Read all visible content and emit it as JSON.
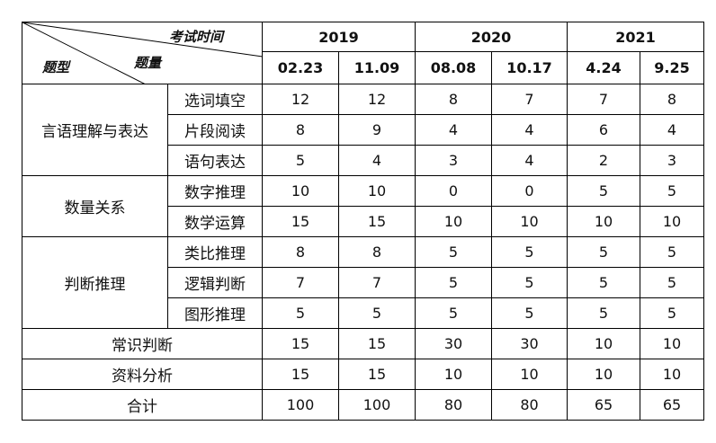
{
  "corner": {
    "time_label": "考试时间",
    "type_label": "题型",
    "qty_label": "题量"
  },
  "years": [
    {
      "label": "2019"
    },
    {
      "label": "2020"
    },
    {
      "label": "2021"
    }
  ],
  "dates": [
    "02.23",
    "11.09",
    "08.08",
    "10.17",
    "4.24",
    "9.25"
  ],
  "groups": [
    {
      "category": "言语理解与表达",
      "rows": [
        {
          "name": "选词填空",
          "values": [
            "12",
            "12",
            "8",
            "7",
            "7",
            "8"
          ]
        },
        {
          "name": "片段阅读",
          "values": [
            "8",
            "9",
            "4",
            "4",
            "6",
            "4"
          ]
        },
        {
          "name": "语句表达",
          "values": [
            "5",
            "4",
            "3",
            "4",
            "2",
            "3"
          ]
        }
      ]
    },
    {
      "category": "数量关系",
      "rows": [
        {
          "name": "数字推理",
          "values": [
            "10",
            "10",
            "0",
            "0",
            "5",
            "5"
          ]
        },
        {
          "name": "数学运算",
          "values": [
            "15",
            "15",
            "10",
            "10",
            "10",
            "10"
          ]
        }
      ]
    },
    {
      "category": "判断推理",
      "rows": [
        {
          "name": "类比推理",
          "values": [
            "8",
            "8",
            "5",
            "5",
            "5",
            "5"
          ]
        },
        {
          "name": "逻辑判断",
          "values": [
            "7",
            "7",
            "5",
            "5",
            "5",
            "5"
          ]
        },
        {
          "name": "图形推理",
          "values": [
            "5",
            "5",
            "5",
            "5",
            "5",
            "5"
          ]
        }
      ]
    }
  ],
  "single_rows": [
    {
      "name": "常识判断",
      "values": [
        "15",
        "15",
        "30",
        "30",
        "10",
        "10"
      ]
    },
    {
      "name": "资料分析",
      "values": [
        "15",
        "15",
        "10",
        "10",
        "10",
        "10"
      ]
    },
    {
      "name": "合计",
      "values": [
        "100",
        "100",
        "80",
        "80",
        "65",
        "65"
      ]
    }
  ]
}
